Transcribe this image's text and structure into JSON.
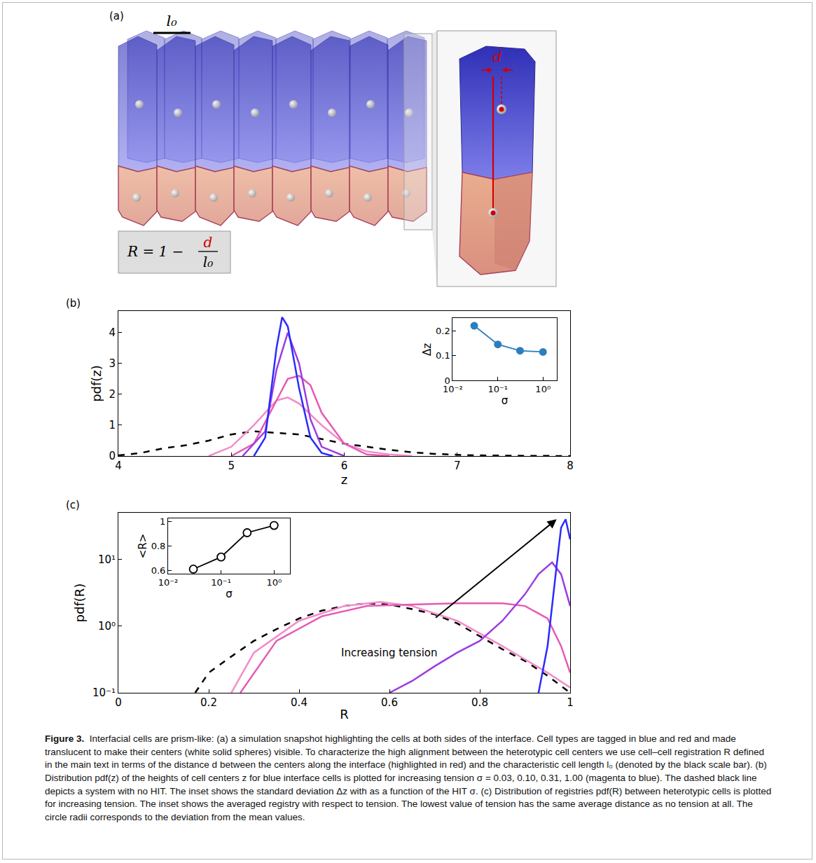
{
  "panel_a": {
    "panel_label": "(a)",
    "scale_bar_label": "l₀",
    "distance_label": "d",
    "formula": {
      "lhs": "R = 1 −",
      "numerator": "d",
      "denominator": "l₀"
    }
  },
  "chart_data": [
    {
      "panel_label": "(b)",
      "type": "line",
      "x_label": "z",
      "y_label": "pdf(z)",
      "xlim": [
        4,
        8
      ],
      "xticks": [
        4,
        5,
        6,
        7,
        8
      ],
      "ylim": [
        0,
        4.7
      ],
      "yticks": [
        0,
        1,
        2,
        3,
        4
      ],
      "series": [
        {
          "color": "#000000",
          "line_style": "dashed",
          "x": [
            4.0,
            4.2,
            4.4,
            4.6,
            4.8,
            5.0,
            5.2,
            5.4,
            5.6,
            5.8,
            6.0,
            6.2,
            6.4,
            6.6,
            6.8,
            7.0,
            7.2,
            7.5,
            8.0
          ],
          "values": [
            0.02,
            0.1,
            0.25,
            0.35,
            0.5,
            0.7,
            0.8,
            0.75,
            0.7,
            0.55,
            0.4,
            0.3,
            0.2,
            0.12,
            0.07,
            0.04,
            0.02,
            0.01,
            0
          ]
        },
        {
          "color": "#f38cc9",
          "line_style": "solid",
          "x": [
            4.8,
            5.0,
            5.2,
            5.4,
            5.5,
            5.6,
            5.8,
            6.0,
            6.2,
            6.4,
            6.6
          ],
          "values": [
            0,
            0.3,
            1.0,
            1.8,
            1.9,
            1.7,
            1.0,
            0.4,
            0.15,
            0.05,
            0
          ]
        },
        {
          "color": "#e55bb4",
          "line_style": "solid",
          "x": [
            5.0,
            5.2,
            5.4,
            5.5,
            5.6,
            5.7,
            5.8,
            6.0,
            6.2,
            6.4
          ],
          "values": [
            0,
            0.4,
            1.8,
            2.5,
            2.6,
            2.3,
            1.4,
            0.4,
            0.05,
            0
          ]
        },
        {
          "color": "#9b3de0",
          "line_style": "solid",
          "x": [
            5.1,
            5.3,
            5.4,
            5.5,
            5.6,
            5.7,
            5.8,
            6.0
          ],
          "values": [
            0,
            0.8,
            2.8,
            4.0,
            3.0,
            1.2,
            0.3,
            0
          ]
        },
        {
          "color": "#2b2bff",
          "line_style": "solid",
          "x": [
            5.2,
            5.3,
            5.4,
            5.45,
            5.5,
            5.6,
            5.7,
            5.8,
            5.9
          ],
          "values": [
            0,
            0.6,
            3.5,
            4.5,
            4.2,
            2.2,
            0.6,
            0.1,
            0
          ]
        }
      ],
      "inset": {
        "type": "line",
        "marker": "circle",
        "color": "#2a7fc0",
        "log": "x",
        "x_label": "σ",
        "y_label": "Δz",
        "x": [
          0.03,
          0.1,
          0.31,
          1.0
        ],
        "values": [
          0.22,
          0.145,
          0.12,
          0.115
        ],
        "xlim": [
          0.01,
          2
        ],
        "xticks": [
          {
            "value": 0.01,
            "label": "10⁻²"
          },
          {
            "value": 0.1,
            "label": "10⁻¹"
          },
          {
            "value": 1,
            "label": "10⁰"
          }
        ],
        "ylim": [
          0,
          0.25
        ],
        "yticks": [
          0,
          0.1,
          0.2
        ]
      }
    },
    {
      "panel_label": "(c)",
      "type": "line",
      "log": "y",
      "x_label": "R",
      "y_label": "pdf(R)",
      "xlim": [
        0,
        1
      ],
      "xticks": [
        0,
        0.2,
        0.4,
        0.6,
        0.8,
        1
      ],
      "ylim": [
        0.1,
        50
      ],
      "yticks": [
        {
          "value": 0.1,
          "label": "10⁻¹"
        },
        {
          "value": 1,
          "label": "10⁰"
        },
        {
          "value": 10,
          "label": "10¹"
        }
      ],
      "series": [
        {
          "color": "#000000",
          "line_style": "dashed",
          "x": [
            0.17,
            0.2,
            0.25,
            0.3,
            0.35,
            0.4,
            0.45,
            0.5,
            0.55,
            0.6,
            0.65,
            0.7,
            0.75,
            0.8,
            0.85,
            0.9,
            0.95,
            1.0
          ],
          "values": [
            0.1,
            0.2,
            0.35,
            0.6,
            0.9,
            1.3,
            1.7,
            2.0,
            2.2,
            2.1,
            1.8,
            1.5,
            1.1,
            0.7,
            0.45,
            0.3,
            0.18,
            0.1
          ]
        },
        {
          "color": "#f38cc9",
          "line_style": "solid",
          "x": [
            0.25,
            0.3,
            0.4,
            0.5,
            0.58,
            0.65,
            0.75,
            0.85,
            0.95,
            1.0
          ],
          "values": [
            0.1,
            0.4,
            1.2,
            2.0,
            2.3,
            2.0,
            1.2,
            0.5,
            0.2,
            0.12
          ]
        },
        {
          "color": "#e55bb4",
          "line_style": "solid",
          "x": [
            0.27,
            0.35,
            0.45,
            0.55,
            0.65,
            0.75,
            0.85,
            0.9,
            0.95,
            0.98,
            1.0
          ],
          "values": [
            0.1,
            0.6,
            1.4,
            2.0,
            2.1,
            2.2,
            2.2,
            2.0,
            1.3,
            0.5,
            0.2
          ]
        },
        {
          "color": "#9b3de0",
          "line_style": "solid",
          "x": [
            0.6,
            0.65,
            0.7,
            0.75,
            0.8,
            0.85,
            0.9,
            0.93,
            0.96,
            0.98,
            1.0
          ],
          "values": [
            0.1,
            0.15,
            0.25,
            0.4,
            0.6,
            1.2,
            3,
            6,
            9,
            6,
            2
          ]
        },
        {
          "color": "#2b2bff",
          "line_style": "solid",
          "x": [
            0.93,
            0.95,
            0.97,
            0.98,
            0.99,
            1.0
          ],
          "values": [
            0.1,
            0.5,
            8,
            30,
            40,
            20
          ]
        }
      ],
      "annotations": [
        {
          "text": "Increasing tension",
          "x": 0.6,
          "y": 0.4
        }
      ],
      "arrow": {
        "x0": 0.7,
        "y0": 1.3,
        "x1": 0.97,
        "y1": 40
      },
      "inset": {
        "type": "line",
        "marker": "open circle",
        "color": "#000000",
        "log": "x",
        "x_label": "σ",
        "y_label": "<R>",
        "x": [
          0.03,
          0.1,
          0.31,
          1.0
        ],
        "values": [
          0.61,
          0.71,
          0.91,
          0.97
        ],
        "xlim": [
          0.01,
          2
        ],
        "xticks": [
          {
            "value": 0.01,
            "label": "10⁻²"
          },
          {
            "value": 0.1,
            "label": "10⁻¹"
          },
          {
            "value": 1,
            "label": "10⁰"
          }
        ],
        "ylim": [
          0.57,
          1.03
        ],
        "yticks": [
          0.6,
          0.8,
          1
        ]
      }
    }
  ],
  "caption": {
    "label": "Figure 3.",
    "text": "Interfacial cells are prism-like: (a) a simulation snapshot highlighting the cells at both sides of the interface. Cell types are tagged in blue and red and made translucent to make their centers (white solid spheres) visible. To characterize the high alignment between the heterotypic cell centers we use cell–cell registration R defined in the main text in terms of the distance d between the centers along the interface (highlighted in red) and the characteristic cell length l₀ (denoted by the black scale bar). (b) Distribution pdf(z) of the heights of cell centers z for blue interface cells is plotted for increasing tension σ = 0.03, 0.10, 0.31, 1.00 (magenta to blue). The dashed black line depicts a system with no HIT. The inset shows the standard deviation Δz with as a function of the HIT σ. (c) Distribution of registries pdf(R) between heterotypic cells is plotted for increasing tension. The inset shows the averaged registry with respect to tension. The lowest value of tension has the same average distance as no tension at all. The circle radii corresponds to the deviation from the mean values."
  }
}
